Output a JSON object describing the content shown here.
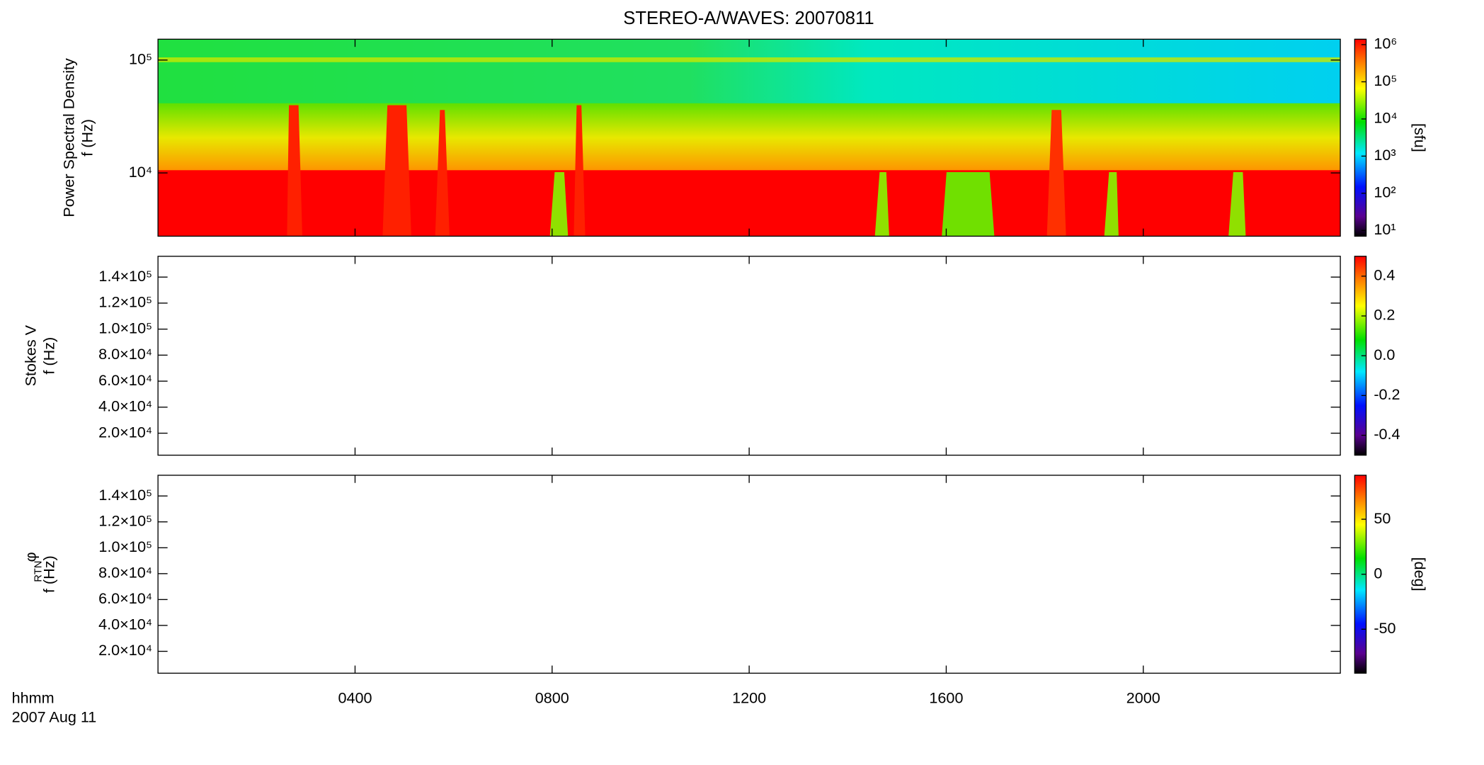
{
  "title": "STEREO-A/WAVES: 20070811",
  "time_axis": {
    "xlim": [
      0,
      24
    ],
    "xticks": [
      {
        "value": 4,
        "label": "0400"
      },
      {
        "value": 8,
        "label": "0800"
      },
      {
        "value": 12,
        "label": "1200"
      },
      {
        "value": 16,
        "label": "1600"
      },
      {
        "value": 20,
        "label": "2000"
      }
    ],
    "label": [
      "hhmm",
      "2007 Aug 11"
    ]
  },
  "chart_data": [
    {
      "type": "heatmap",
      "ylabel": [
        "Power Spectral Density",
        "f (Hz)"
      ],
      "log_y": true,
      "ylim": [
        2750,
        153000
      ],
      "yticks": [
        {
          "value": 10000,
          "label": "10⁴"
        },
        {
          "value": 100000,
          "label": "10⁵"
        }
      ],
      "colorbar": {
        "log": true,
        "lim": [
          7,
          1400000
        ],
        "label": "[sfu]",
        "ticks": [
          {
            "value": 10,
            "label": "10¹"
          },
          {
            "value": 100,
            "label": "10²"
          },
          {
            "value": 1000,
            "label": "10³"
          },
          {
            "value": 10000,
            "label": "10⁴"
          },
          {
            "value": 100000,
            "label": "10⁵"
          },
          {
            "value": 1000000,
            "label": "10⁶"
          }
        ]
      }
    },
    {
      "type": "heatmap",
      "ylabel": [
        "Stokes V",
        "f (Hz)"
      ],
      "log_y": false,
      "ylim": [
        3100,
        156000
      ],
      "yticks": [
        {
          "value": 20000,
          "label": "2.0×10⁴"
        },
        {
          "value": 40000,
          "label": "4.0×10⁴"
        },
        {
          "value": 60000,
          "label": "6.0×10⁴"
        },
        {
          "value": 80000,
          "label": "8.0×10⁴"
        },
        {
          "value": 100000,
          "label": "1.0×10⁵"
        },
        {
          "value": 120000,
          "label": "1.2×10⁵"
        },
        {
          "value": 140000,
          "label": "1.4×10⁵"
        }
      ],
      "colorbar": {
        "log": false,
        "lim": [
          -0.5,
          0.5
        ],
        "ticks": [
          -0.4,
          -0.2,
          {
            "value": 0,
            "label": "0.0"
          },
          0.2,
          0.4
        ]
      }
    },
    {
      "type": "heatmap",
      "ylabel": [
        "φ",
        "RTN",
        "f (Hz)"
      ],
      "log_y": false,
      "ylim": [
        3100,
        156000
      ],
      "yticks": [
        {
          "value": 20000,
          "label": "2.0×10⁴"
        },
        {
          "value": 40000,
          "label": "4.0×10⁴"
        },
        {
          "value": 60000,
          "label": "6.0×10⁴"
        },
        {
          "value": 80000,
          "label": "8.0×10⁴"
        },
        {
          "value": 100000,
          "label": "1.0×10⁵"
        },
        {
          "value": 120000,
          "label": "1.2×10⁵"
        },
        {
          "value": 140000,
          "label": "1.4×10⁵"
        }
      ],
      "colorbar": {
        "log": false,
        "lim": [
          -90,
          90
        ],
        "label": "[deg]",
        "ticks": [
          -50,
          0,
          50
        ]
      }
    }
  ]
}
